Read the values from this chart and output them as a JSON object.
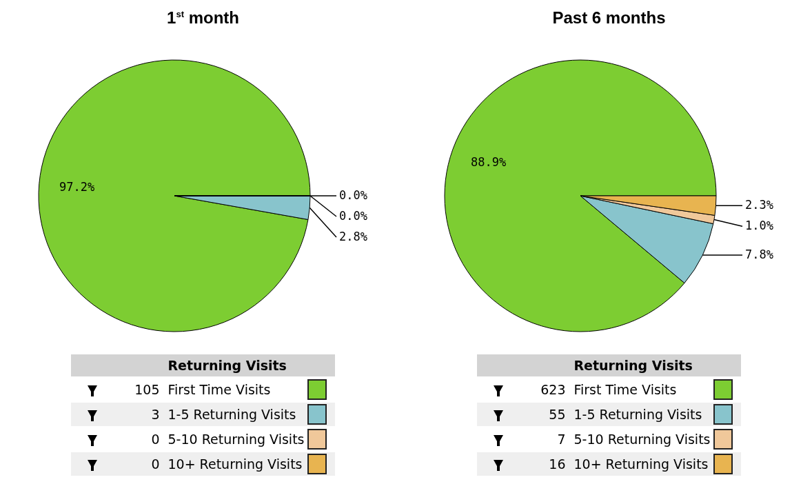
{
  "chart_data": [
    {
      "type": "pie",
      "title": "1$^{st}$ month",
      "legend_title": "Returning Visits",
      "legend": "bottom",
      "categories": [
        "First Time Visits",
        "1-5 Returning Visits",
        "5-10 Returning Visits",
        "10+ Returning Visits"
      ],
      "values": [
        97.2,
        2.8,
        0.0,
        0.0
      ],
      "value_labels": [
        "97.2%",
        "2.8%",
        "0.0%",
        "0.0%"
      ],
      "annotations": [
        "105",
        "3",
        "0",
        "0"
      ],
      "colors": [
        "#7dcd32",
        "#88c4cc",
        "#f0c89a",
        "#e8b450"
      ]
    },
    {
      "type": "pie",
      "title": "Past 6 months",
      "legend_title": "Returning Visits",
      "legend": "bottom",
      "categories": [
        "First Time Visits",
        "1-5 Returning Visits",
        "5-10 Returning Visits",
        "10+ Returning Visits"
      ],
      "values": [
        88.9,
        7.8,
        1.0,
        2.3
      ],
      "value_labels": [
        "88.9%",
        "7.8%",
        "1.0%",
        "2.3%"
      ],
      "annotations": [
        "623",
        "55",
        "7",
        "16"
      ],
      "colors": [
        "#7dcd32",
        "#88c4cc",
        "#f0c89a",
        "#e8b450"
      ]
    }
  ]
}
